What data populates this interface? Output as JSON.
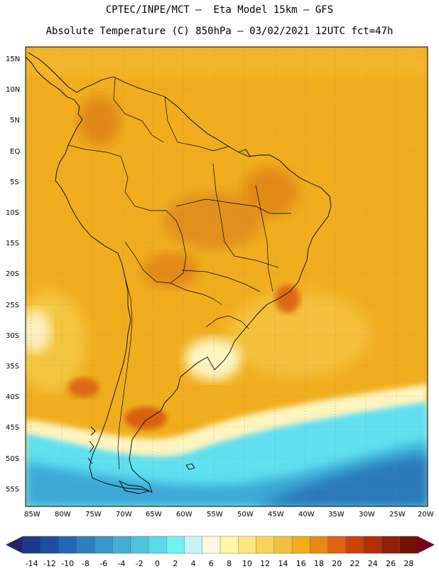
{
  "header": {
    "line1": "CPTEC/INPE/MCT —  Eta Model 15km — GFS",
    "line2": "Absolute Temperature (C) 850hPa — 03/02/2021 12UTC fct=47h"
  },
  "map": {
    "lat_labels": [
      "15N",
      "10N",
      "5N",
      "EQ",
      "5S",
      "10S",
      "15S",
      "20S",
      "25S",
      "30S",
      "35S",
      "40S",
      "45S",
      "50S",
      "55S"
    ],
    "lon_labels": [
      "85W",
      "80W",
      "75W",
      "70W",
      "65W",
      "60W",
      "55W",
      "50W",
      "45W",
      "40W",
      "35W",
      "30W",
      "25W",
      "20W"
    ],
    "colors": {
      "land_outline": "#000000",
      "grid": "#888888",
      "warm_base": "#f0ae1e",
      "warm_dark": "#e08a18",
      "warm_light": "#f6cc4a",
      "pale": "#fdf6c2",
      "cold_cyan": "#60e0f0",
      "cold_blue": "#3a9cd0"
    }
  },
  "colorbar": {
    "labels": [
      "-14",
      "-12",
      "-10",
      "-8",
      "-6",
      "-4",
      "-2",
      "0",
      "2",
      "4",
      "6",
      "8",
      "10",
      "12",
      "14",
      "16",
      "18",
      "20",
      "22",
      "24",
      "26",
      "28"
    ],
    "colors": [
      "#1a3a8a",
      "#1e4fa0",
      "#2568b2",
      "#2d80c0",
      "#3a98cc",
      "#44aed4",
      "#50c4dc",
      "#5cd8e6",
      "#6ef2f2",
      "#c8f4f8",
      "#fef8e0",
      "#fef6a8",
      "#fde880",
      "#f8d45a",
      "#f2c040",
      "#f0ae1e",
      "#e88a16",
      "#dc6410",
      "#c8440c",
      "#b03008",
      "#902006",
      "#701406"
    ],
    "low_cap_color": "#22246a",
    "high_cap_color": "#700a1a"
  }
}
